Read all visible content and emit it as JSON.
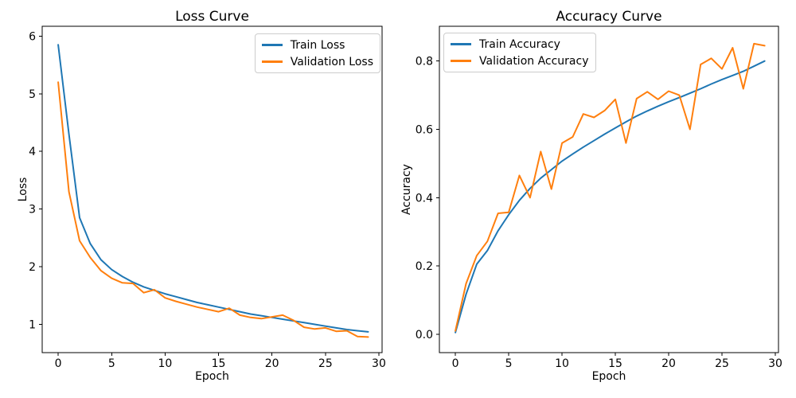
{
  "figure": {
    "background": "#ffffff",
    "text_color": "#000000",
    "spine_color": "#000000"
  },
  "chart_data": [
    {
      "type": "line",
      "title": "Loss Curve",
      "xlabel": "Epoch",
      "ylabel": "Loss",
      "x": [
        0,
        1,
        2,
        3,
        4,
        5,
        6,
        7,
        8,
        9,
        10,
        11,
        12,
        13,
        14,
        15,
        16,
        17,
        18,
        19,
        20,
        21,
        22,
        23,
        24,
        25,
        26,
        27,
        28,
        29
      ],
      "series": [
        {
          "name": "Train Loss",
          "color": "#1f77b4",
          "values": [
            5.85,
            4.3,
            2.85,
            2.4,
            2.12,
            1.95,
            1.83,
            1.73,
            1.65,
            1.59,
            1.53,
            1.48,
            1.43,
            1.38,
            1.34,
            1.3,
            1.26,
            1.22,
            1.18,
            1.15,
            1.12,
            1.09,
            1.06,
            1.03,
            1.0,
            0.97,
            0.94,
            0.91,
            0.89,
            0.87
          ]
        },
        {
          "name": "Validation Loss",
          "color": "#ff7f0e",
          "values": [
            5.2,
            3.3,
            2.45,
            2.16,
            1.93,
            1.8,
            1.72,
            1.71,
            1.55,
            1.6,
            1.46,
            1.4,
            1.35,
            1.3,
            1.26,
            1.22,
            1.28,
            1.16,
            1.12,
            1.1,
            1.13,
            1.16,
            1.07,
            0.95,
            0.92,
            0.94,
            0.88,
            0.89,
            0.79,
            0.78
          ]
        }
      ],
      "xlim": [
        -1.5,
        30.3
      ],
      "ylim": [
        0.51,
        6.17
      ],
      "xticks": [
        0,
        5,
        10,
        15,
        20,
        25,
        30
      ],
      "xtick_labels": [
        "0",
        "5",
        "10",
        "15",
        "20",
        "25",
        "30"
      ],
      "yticks": [
        1,
        2,
        3,
        4,
        5,
        6
      ],
      "ytick_labels": [
        "1",
        "2",
        "3",
        "4",
        "5",
        "6"
      ],
      "legend_position": "upper right",
      "grid": false
    },
    {
      "type": "line",
      "title": "Accuracy Curve",
      "xlabel": "Epoch",
      "ylabel": "Accuracy",
      "x": [
        0,
        1,
        2,
        3,
        4,
        5,
        6,
        7,
        8,
        9,
        10,
        11,
        12,
        13,
        14,
        15,
        16,
        17,
        18,
        19,
        20,
        21,
        22,
        23,
        24,
        25,
        26,
        27,
        28,
        29
      ],
      "series": [
        {
          "name": "Train Accuracy",
          "color": "#1f77b4",
          "values": [
            0.005,
            0.117,
            0.205,
            0.245,
            0.303,
            0.35,
            0.392,
            0.427,
            0.457,
            0.482,
            0.507,
            0.528,
            0.548,
            0.567,
            0.586,
            0.604,
            0.622,
            0.639,
            0.654,
            0.668,
            0.681,
            0.693,
            0.706,
            0.719,
            0.733,
            0.746,
            0.758,
            0.77,
            0.785,
            0.8
          ]
        },
        {
          "name": "Validation Accuracy",
          "color": "#ff7f0e",
          "values": [
            0.01,
            0.148,
            0.23,
            0.272,
            0.354,
            0.357,
            0.465,
            0.4,
            0.535,
            0.425,
            0.56,
            0.578,
            0.645,
            0.635,
            0.655,
            0.688,
            0.56,
            0.69,
            0.71,
            0.688,
            0.712,
            0.7,
            0.6,
            0.79,
            0.808,
            0.777,
            0.839,
            0.719,
            0.851,
            0.845
          ]
        }
      ],
      "xlim": [
        -1.5,
        30.3
      ],
      "ylim": [
        -0.054,
        0.902
      ],
      "xticks": [
        0,
        5,
        10,
        15,
        20,
        25,
        30
      ],
      "xtick_labels": [
        "0",
        "5",
        "10",
        "15",
        "20",
        "25",
        "30"
      ],
      "yticks": [
        0,
        0.2,
        0.4,
        0.6,
        0.8
      ],
      "ytick_labels": [
        "0.0",
        "0.2",
        "0.4",
        "0.6",
        "0.8"
      ],
      "legend_position": "upper left",
      "grid": false
    }
  ]
}
